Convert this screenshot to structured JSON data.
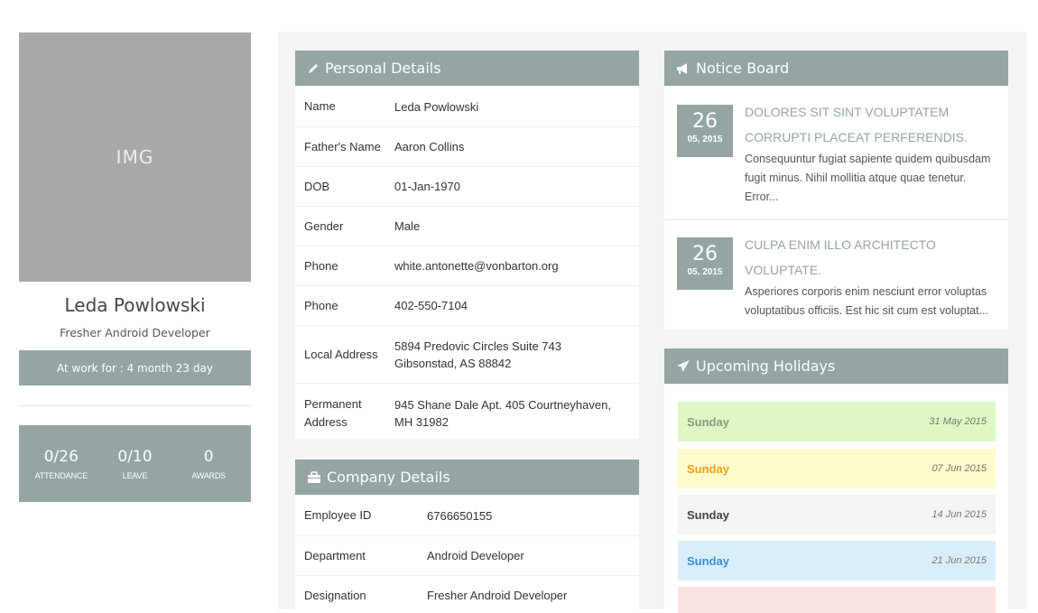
{
  "profile": {
    "avatar_text": "IMG",
    "name": "Leda Powlowski",
    "role": "Fresher Android Developer",
    "work_duration": "At work for : 4 month 23 day",
    "stats": [
      {
        "value": "0/26",
        "label": "ATTENDANCE"
      },
      {
        "value": "0/10",
        "label": "LEAVE"
      },
      {
        "value": "0",
        "label": "AWARDS"
      }
    ]
  },
  "personal": {
    "title": "Personal Details",
    "icon": "pencil-icon",
    "rows": [
      {
        "key": "Name",
        "value": "Leda Powlowski"
      },
      {
        "key": "Father's Name",
        "value": "Aaron Collins"
      },
      {
        "key": "DOB",
        "value": "01-Jan-1970"
      },
      {
        "key": "Gender",
        "value": "Male"
      },
      {
        "key": "Phone",
        "value": "white.antonette@vonbarton.org"
      },
      {
        "key": "Phone",
        "value": "402-550-7104"
      },
      {
        "key": "Local Address",
        "value": "5894 Predovic Circles Suite 743 Gibsonstad, AS 88842"
      },
      {
        "key": "Permanent Address",
        "value": "945 Shane Dale Apt. 405 Courtneyhaven, MH 31982"
      }
    ]
  },
  "company": {
    "title": "Company Details",
    "icon": "briefcase-icon",
    "rows": [
      {
        "key": "Employee ID",
        "value": "6766650155"
      },
      {
        "key": "Department",
        "value": "Android Developer"
      },
      {
        "key": "Designation",
        "value": "Fresher Android Developer"
      }
    ]
  },
  "notices": {
    "title": "Notice Board",
    "icon": "megaphone-icon",
    "items": [
      {
        "day": "26",
        "month_year": "05, 2015",
        "title": "DOLORES SIT SINT VOLUPTATEM CORRUPTI PLACEAT PERFERENDIS.",
        "text": "Consequuntur fugiat sapiente quidem quibusdam fugit minus. Nihil mollitia atque quae tenetur. Error..."
      },
      {
        "day": "26",
        "month_year": "05, 2015",
        "title": "CULPA ENIM ILLO ARCHITECTO VOLUPTATE.",
        "text": "Asperiores corporis enim nesciunt error voluptas voluptatibus officiis. Est hic sit cum est voluptat..."
      }
    ]
  },
  "holidays": {
    "title": "Upcoming Holidays",
    "icon": "paper-plane-icon",
    "items": [
      {
        "day": "Sunday",
        "date": "31 May 2015",
        "bg": "#dff7c4",
        "color": "#8a9a7a"
      },
      {
        "day": "Sunday",
        "date": "07 Jun 2015",
        "bg": "#fdfacc",
        "color": "#e8a317"
      },
      {
        "day": "Sunday",
        "date": "14 Jun 2015",
        "bg": "#f4f4f4",
        "color": "#444444"
      },
      {
        "day": "Sunday",
        "date": "21 Jun 2015",
        "bg": "#daeefa",
        "color": "#3a8fcf"
      }
    ]
  },
  "colors": {
    "panel_header": "#95a5a6",
    "notice_title": "#95a5a6"
  }
}
